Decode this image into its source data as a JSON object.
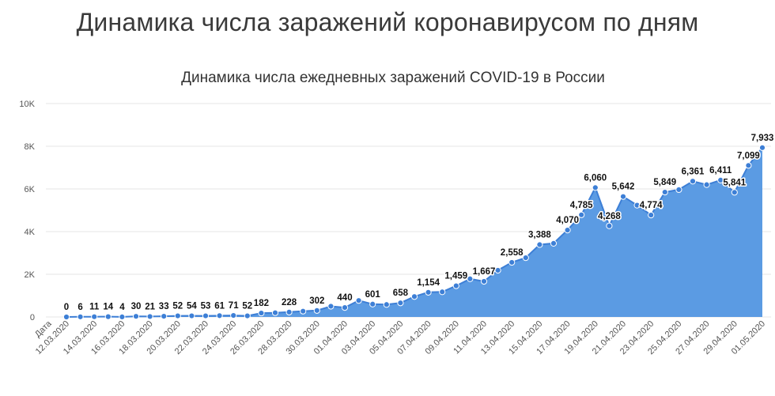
{
  "page": {
    "title": "Динамика числа заражений коронавирусом по дням"
  },
  "chart_data": {
    "type": "area",
    "title": "Динамика числа ежедневных заражений COVID-19 в России",
    "ylim": [
      0,
      10000
    ],
    "y_ticks": [
      "0",
      "2K",
      "4K",
      "6K",
      "8K",
      "10K"
    ],
    "y_tick_values": [
      0,
      2000,
      4000,
      6000,
      8000,
      10000
    ],
    "grid": true,
    "legend": "none",
    "color": "#5b9be3",
    "line_color": "#3d7fd6",
    "x_axis_first_label": "Дата",
    "x": [
      "12.03.2020",
      "13.03.2020",
      "14.03.2020",
      "15.03.2020",
      "16.03.2020",
      "17.03.2020",
      "18.03.2020",
      "19.03.2020",
      "20.03.2020",
      "21.03.2020",
      "22.03.2020",
      "23.03.2020",
      "24.03.2020",
      "25.03.2020",
      "26.03.2020",
      "27.03.2020",
      "28.03.2020",
      "29.03.2020",
      "30.03.2020",
      "31.03.2020",
      "01.04.2020",
      "02.04.2020",
      "03.04.2020",
      "04.04.2020",
      "05.04.2020",
      "06.04.2020",
      "07.04.2020",
      "08.04.2020",
      "09.04.2020",
      "10.04.2020",
      "11.04.2020",
      "12.04.2020",
      "13.04.2020",
      "14.04.2020",
      "15.04.2020",
      "16.04.2020",
      "17.04.2020",
      "18.04.2020",
      "19.04.2020",
      "20.04.2020",
      "21.04.2020",
      "22.04.2020",
      "23.04.2020",
      "24.04.2020",
      "25.04.2020",
      "26.04.2020",
      "27.04.2020",
      "28.04.2020",
      "29.04.2020",
      "30.04.2020",
      "01.05.2020"
    ],
    "values": [
      0,
      6,
      11,
      14,
      4,
      30,
      21,
      33,
      52,
      54,
      53,
      61,
      71,
      52,
      182,
      196,
      228,
      270,
      302,
      501,
      440,
      771,
      601,
      582,
      658,
      954,
      1154,
      1175,
      1459,
      1786,
      1667,
      2186,
      2558,
      2774,
      3388,
      3448,
      4070,
      4785,
      6060,
      4268,
      5642,
      5236,
      4774,
      5849,
      5966,
      6361,
      6198,
      6411,
      5841,
      7099,
      7933
    ],
    "labels": [
      "0",
      "6",
      "11",
      "14",
      "4",
      "30",
      "21",
      "33",
      "52",
      "54",
      "53",
      "61",
      "71",
      "52",
      "182",
      "",
      "228",
      "",
      "302",
      "",
      "440",
      "",
      "601",
      "",
      "658",
      "",
      "1,154",
      "",
      "1,459",
      "",
      "1,667",
      "",
      "2,558",
      "",
      "3,388",
      "",
      "4,070",
      "4,785",
      "6,060",
      "4,268",
      "5,642",
      "",
      "4,774",
      "5,849",
      "",
      "6,361",
      "",
      "6,411",
      "5,841",
      "7,099",
      "7,933"
    ],
    "x_tick_labels": [
      "12.03.2020",
      "14.03.2020",
      "16.03.2020",
      "18.03.2020",
      "20.03.2020",
      "22.03.2020",
      "24.03.2020",
      "26.03.2020",
      "28.03.2020",
      "30.03.2020",
      "01.04.2020",
      "03.04.2020",
      "05.04.2020",
      "07.04.2020",
      "09.04.2020",
      "11.04.2020",
      "13.04.2020",
      "15.04.2020",
      "17.04.2020",
      "19.04.2020",
      "21.04.2020",
      "23.04.2020",
      "25.04.2020",
      "27.04.2020",
      "29.04.2020",
      "01.05.2020"
    ]
  }
}
